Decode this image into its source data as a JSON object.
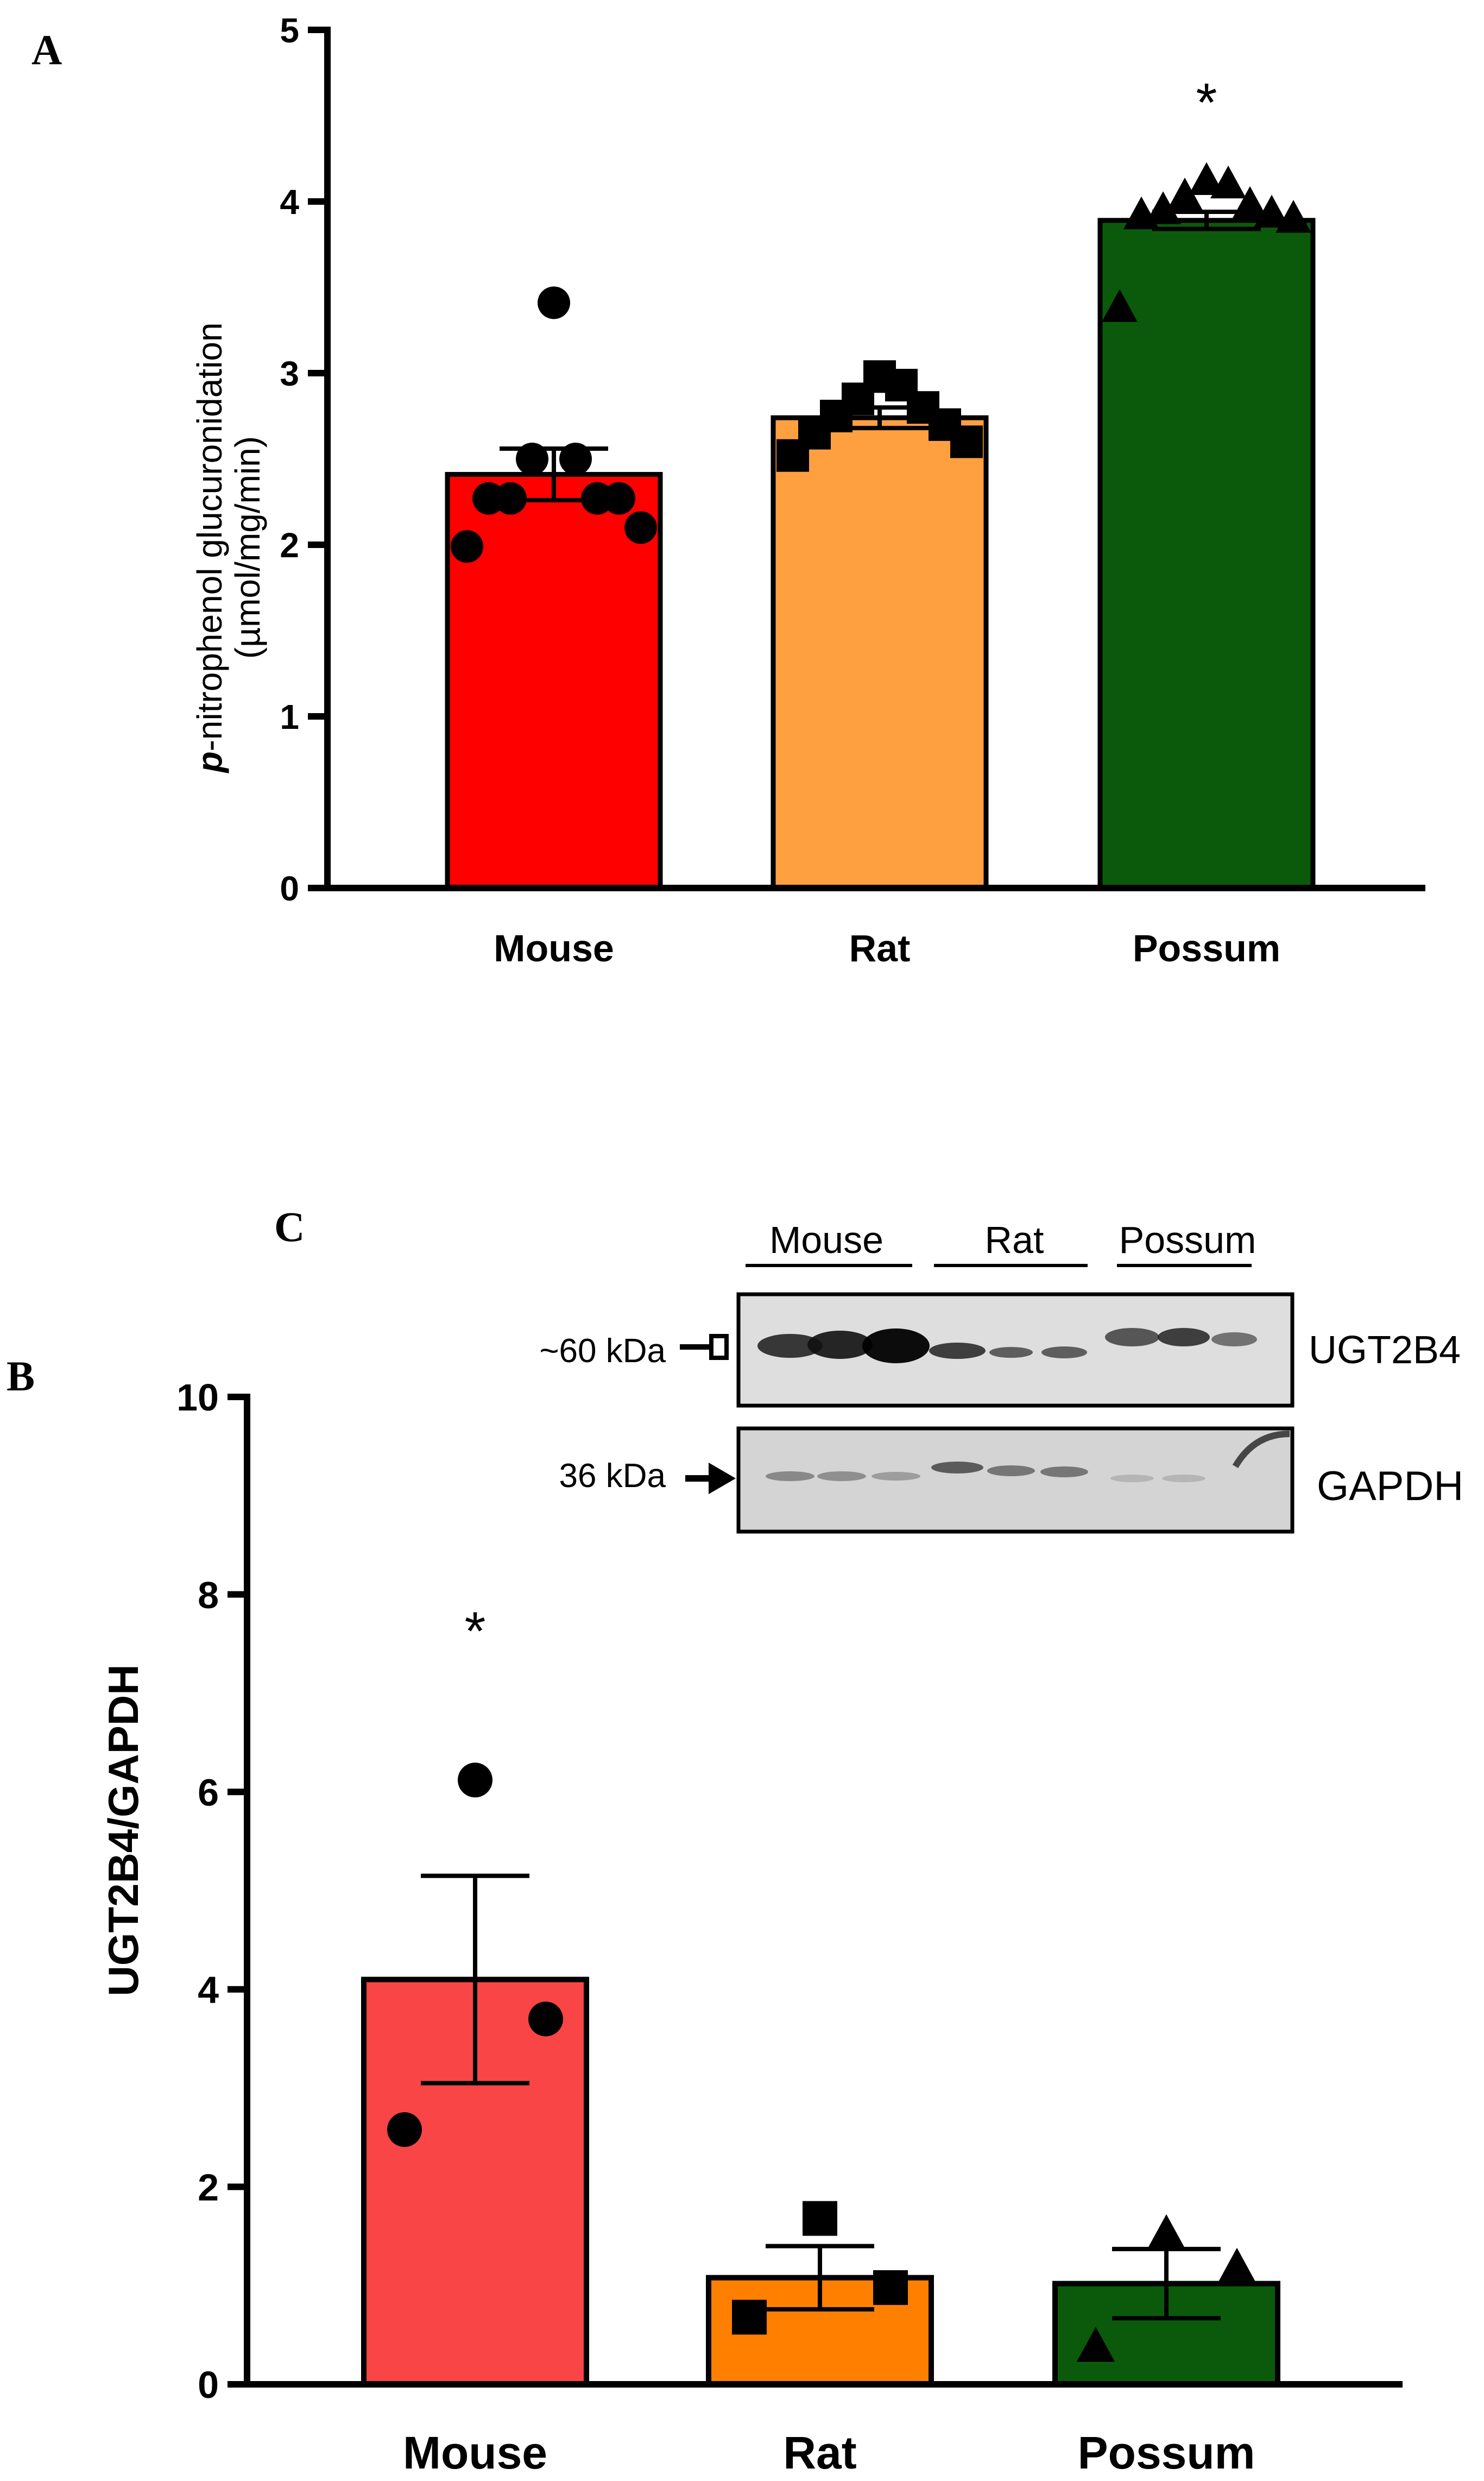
{
  "panels": {
    "a": {
      "letter": "A"
    },
    "b": {
      "letter": "B"
    },
    "c": {
      "letter": "C"
    }
  },
  "chart_data": [
    {
      "id": "panel-a",
      "type": "bar",
      "categories": [
        "Mouse",
        "Rat",
        "Possum"
      ],
      "values": [
        2.41,
        2.74,
        3.89
      ],
      "sem": [
        0.15,
        0.06,
        0.05
      ],
      "ylim": [
        0,
        5
      ],
      "yticks": [
        0,
        1,
        2,
        3,
        4,
        5
      ],
      "ylabel_prefix": "p",
      "ylabel_main": "-nitrophenol glucuronidation",
      "ylabel_unit": "(µmol/mg/min)",
      "xlabel": "",
      "markers": [
        "circle",
        "square",
        "triangle"
      ],
      "colors": [
        "#ff0000",
        "#ffa040",
        "#0b5a0b"
      ],
      "points": [
        [
          3.41,
          2.5,
          2.5,
          2.27,
          2.27,
          2.27,
          2.27,
          2.1,
          1.99
        ],
        [
          2.98,
          2.93,
          2.85,
          2.8,
          2.75,
          2.7,
          2.65,
          2.6,
          2.52
        ],
        [
          4.12,
          4.1,
          4.03,
          3.98,
          3.95,
          3.93,
          3.92,
          3.9,
          3.38
        ]
      ],
      "significance": [
        "",
        "",
        "*"
      ]
    },
    {
      "id": "panel-b",
      "type": "bar",
      "categories": [
        "Mouse",
        "Rat",
        "Possum"
      ],
      "values": [
        4.1,
        1.08,
        1.02
      ],
      "sem": [
        1.05,
        0.32,
        0.35
      ],
      "ylim": [
        0,
        10
      ],
      "yticks": [
        0,
        2,
        4,
        6,
        8,
        10
      ],
      "ylabel": "UGT2B4/GAPDH",
      "xlabel": "",
      "markers": [
        "circle",
        "square",
        "triangle"
      ],
      "colors": [
        "#f94545",
        "#ff8000",
        "#0b5a0b"
      ],
      "points": [
        [
          6.12,
          3.7,
          2.58
        ],
        [
          1.68,
          0.98,
          0.68
        ],
        [
          1.52,
          1.18,
          0.38
        ]
      ],
      "significance": [
        "*",
        "",
        ""
      ]
    }
  ],
  "blot": {
    "groups": [
      "Mouse",
      "Rat",
      "Possum"
    ],
    "rows": [
      {
        "label": "UGT2B4",
        "size_label": "~60 kDa"
      },
      {
        "label": "GAPDH",
        "size_label": "36 kDa"
      }
    ]
  }
}
